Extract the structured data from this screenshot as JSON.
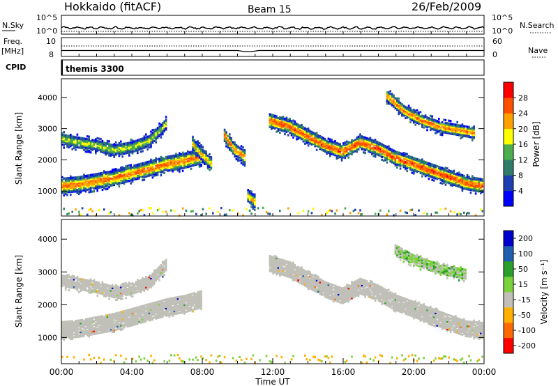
{
  "header": {
    "station": "Hokkaido (fitACF)",
    "beam": "Beam 15",
    "date": "26/Feb/2009"
  },
  "noise_panel": {
    "left_label": "N.Sky",
    "left_ticks": [
      "10^5",
      "10^0"
    ],
    "right_label": "N.Search",
    "right_ticks": [
      "10^5",
      "10^0"
    ]
  },
  "freq_panel": {
    "left_label_line1": "Freq.",
    "left_label_line2": "[MHz]",
    "left_ticks": [
      "10",
      "8"
    ],
    "right_label": "Nave",
    "right_ticks": [
      "60",
      "0"
    ]
  },
  "cpid_panel": {
    "label": "CPID",
    "value": "themis 3300"
  },
  "colors": {
    "power_scale": [
      "#0000ff",
      "#1e3fb0",
      "#2e7d6b",
      "#4cae4c",
      "#ffff00",
      "#ffa000",
      "#ff5000",
      "#ff0000"
    ],
    "velocity_scale": [
      "#ff0000",
      "#ff6a00",
      "#ffb000",
      "#c0c0b8",
      "#7bd23a",
      "#2aa02a",
      "#1f5fb0",
      "#0000cc"
    ],
    "ground_scatter": "#c0c0b8"
  },
  "chart_data": [
    {
      "type": "heatmap",
      "title": "",
      "xlabel": "Time UT",
      "ylabel": "Slant Range [km]",
      "xlim": [
        0,
        24
      ],
      "ylim": [
        200,
        4600
      ],
      "x_tick_labels": [
        "00:00",
        "04:00",
        "08:00",
        "12:00",
        "16:00",
        "20:00",
        "00:00"
      ],
      "y_tick_labels": [
        "1000",
        "2000",
        "3000",
        "4000"
      ],
      "y_ticks": [
        1000,
        2000,
        3000,
        4000
      ],
      "colorbar_label": "Power [dB]",
      "colorbar_ticks": [
        "4",
        "8",
        "12",
        "16",
        "20",
        "24",
        "28"
      ],
      "colorbar_range": [
        0,
        32
      ],
      "bands": [
        {
          "t": [
            0,
            1,
            2,
            3,
            4,
            5,
            6,
            7,
            8
          ],
          "center": [
            1200,
            1250,
            1350,
            1450,
            1600,
            1750,
            1900,
            2000,
            2150
          ],
          "width": 380,
          "power": 24
        },
        {
          "t": [
            0,
            1,
            2,
            3,
            4,
            5,
            6
          ],
          "center": [
            2700,
            2600,
            2500,
            2350,
            2450,
            2650,
            3200
          ],
          "width": 280,
          "power": 16
        },
        {
          "t": [
            7.4,
            8.0,
            8.6
          ],
          "center": [
            2600,
            2200,
            1900
          ],
          "width": 300,
          "power": 20
        },
        {
          "t": [
            9.2,
            9.8,
            10.5
          ],
          "center": [
            2900,
            2400,
            2100
          ],
          "width": 320,
          "power": 24
        },
        {
          "t": [
            11.8,
            13,
            14,
            15,
            16,
            17,
            18,
            19,
            20,
            21,
            22,
            23,
            24
          ],
          "center": [
            3300,
            3100,
            2800,
            2500,
            2300,
            2600,
            2400,
            2100,
            1900,
            1700,
            1500,
            1300,
            1200
          ],
          "width": 340,
          "power": 26
        },
        {
          "t": [
            18.5,
            19.5,
            20.5,
            21.5,
            22.5,
            23.5
          ],
          "center": [
            4100,
            3600,
            3300,
            3100,
            3000,
            2900
          ],
          "width": 260,
          "power": 24
        },
        {
          "t": [
            10.6,
            11.0
          ],
          "center": [
            900,
            700
          ],
          "width": 300,
          "power": 20
        }
      ]
    },
    {
      "type": "heatmap",
      "title": "",
      "xlabel": "Time UT",
      "ylabel": "Slant Range [km]",
      "xlim": [
        0,
        24
      ],
      "ylim": [
        200,
        4600
      ],
      "x_tick_labels": [
        "00:00",
        "04:00",
        "08:00",
        "12:00",
        "16:00",
        "20:00",
        "00:00"
      ],
      "y_tick_labels": [
        "1000",
        "2000",
        "3000",
        "4000"
      ],
      "y_ticks": [
        1000,
        2000,
        3000,
        4000
      ],
      "colorbar_label": "Velocity [m s⁻¹]",
      "colorbar_ticks": [
        "200",
        "100",
        "50",
        "15",
        "-15",
        "-50",
        "-100",
        "-200"
      ],
      "note_ground_scatter": "grey",
      "bands": [
        {
          "t": [
            0,
            1,
            2,
            3,
            4,
            5,
            6,
            7,
            8
          ],
          "center": [
            1250,
            1300,
            1400,
            1500,
            1650,
            1800,
            1950,
            2050,
            2200
          ],
          "width": 420
        },
        {
          "t": [
            0,
            1,
            2,
            3,
            4,
            5,
            6
          ],
          "center": [
            2750,
            2650,
            2550,
            2400,
            2500,
            2700,
            3250
          ],
          "width": 300
        },
        {
          "t": [
            11.8,
            13,
            14,
            15,
            16,
            17,
            18,
            19,
            20,
            21,
            22,
            23,
            24
          ],
          "center": [
            3300,
            3100,
            2800,
            2500,
            2300,
            2600,
            2400,
            2100,
            1900,
            1700,
            1500,
            1300,
            1250
          ],
          "width": 380
        },
        {
          "t": [
            19,
            20,
            21,
            22,
            23
          ],
          "center": [
            3700,
            3400,
            3200,
            3050,
            2950
          ],
          "width": 260
        }
      ]
    }
  ]
}
